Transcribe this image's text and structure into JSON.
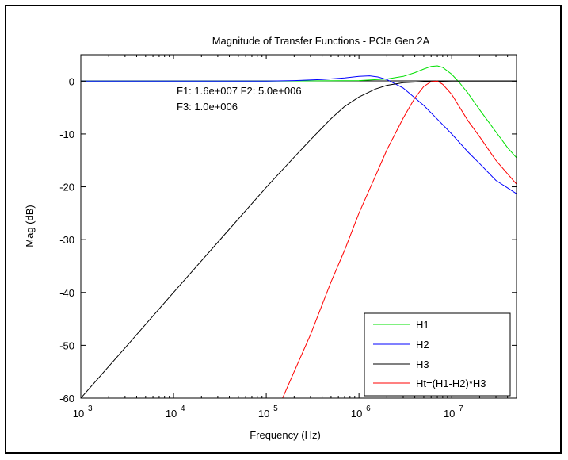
{
  "chart_data": {
    "type": "line",
    "title": "Magnitude of Transfer Functions - PCIe Gen 2A",
    "xlabel": "Frequency (Hz)",
    "ylabel": "Mag (dB)",
    "xscale": "log",
    "xlim": [
      1000,
      50000000
    ],
    "ylim": [
      -60,
      5
    ],
    "x_tick_values": [
      1000,
      10000,
      100000,
      1000000,
      10000000
    ],
    "x_tick_bases": [
      "10",
      "10",
      "10",
      "10",
      "10"
    ],
    "x_tick_exponents": [
      "3",
      "4",
      "5",
      "6",
      "7"
    ],
    "y_ticks": [
      0,
      -10,
      -20,
      -30,
      -40,
      -50,
      -60
    ],
    "y_tick_labels": [
      "0",
      "-10",
      "-20",
      "-30",
      "-40",
      "-50",
      "-60"
    ],
    "grid": false,
    "legend_position": "bottom-right",
    "annotations": [
      "F1: 1.6e+007 F2: 5.0e+006",
      "F3: 1.0e+006"
    ],
    "series": [
      {
        "name": "H1",
        "color": "#00e000",
        "points": [
          [
            1000,
            0
          ],
          [
            10000,
            0
          ],
          [
            100000,
            0
          ],
          [
            1000000,
            0.1
          ],
          [
            2000000,
            0.4
          ],
          [
            3000000,
            0.9
          ],
          [
            4000000,
            1.6
          ],
          [
            5000000,
            2.3
          ],
          [
            6000000,
            2.8
          ],
          [
            7000000,
            2.9
          ],
          [
            8000000,
            2.6
          ],
          [
            10000000,
            1.3
          ],
          [
            12000000,
            -0.2
          ],
          [
            15000000,
            -2.3
          ],
          [
            20000000,
            -5.4
          ],
          [
            30000000,
            -9.6
          ],
          [
            40000000,
            -12.6
          ],
          [
            50000000,
            -14.5
          ]
        ]
      },
      {
        "name": "H2",
        "color": "#0000ff",
        "points": [
          [
            1000,
            0
          ],
          [
            10000,
            0
          ],
          [
            100000,
            0
          ],
          [
            200000,
            0.1
          ],
          [
            400000,
            0.3
          ],
          [
            700000,
            0.6
          ],
          [
            1000000,
            0.9
          ],
          [
            1300000,
            1.0
          ],
          [
            1600000,
            0.8
          ],
          [
            2000000,
            0.3
          ],
          [
            3000000,
            -1.3
          ],
          [
            5000000,
            -4.6
          ],
          [
            7000000,
            -7.2
          ],
          [
            10000000,
            -10.0
          ],
          [
            15000000,
            -13.4
          ],
          [
            20000000,
            -15.6
          ],
          [
            30000000,
            -18.8
          ],
          [
            50000000,
            -21.3
          ]
        ]
      },
      {
        "name": "H3",
        "color": "#000000",
        "points": [
          [
            1000,
            -60
          ],
          [
            3000,
            -50.5
          ],
          [
            10000,
            -40
          ],
          [
            30000,
            -30.5
          ],
          [
            100000,
            -20.1
          ],
          [
            200000,
            -14.4
          ],
          [
            300000,
            -11.1
          ],
          [
            500000,
            -7.1
          ],
          [
            700000,
            -4.8
          ],
          [
            1000000,
            -3.0
          ],
          [
            1500000,
            -1.5
          ],
          [
            2000000,
            -0.8
          ],
          [
            3000000,
            -0.3
          ],
          [
            5000000,
            -0.1
          ],
          [
            10000000,
            0
          ],
          [
            50000000,
            0
          ]
        ]
      },
      {
        "name": "Ht=(H1-H2)*H3",
        "color": "#ff0000",
        "points": [
          [
            150000,
            -60
          ],
          [
            200000,
            -55
          ],
          [
            300000,
            -48
          ],
          [
            500000,
            -38
          ],
          [
            700000,
            -32
          ],
          [
            1000000,
            -25
          ],
          [
            1500000,
            -18
          ],
          [
            2000000,
            -13
          ],
          [
            3000000,
            -7
          ],
          [
            4000000,
            -3.2
          ],
          [
            5000000,
            -1.0
          ],
          [
            6000000,
            -0.1
          ],
          [
            7000000,
            0
          ],
          [
            8000000,
            -0.6
          ],
          [
            10000000,
            -2.5
          ],
          [
            15000000,
            -7.5
          ],
          [
            20000000,
            -10.5
          ],
          [
            30000000,
            -15.0
          ],
          [
            50000000,
            -19.5
          ]
        ]
      }
    ]
  }
}
